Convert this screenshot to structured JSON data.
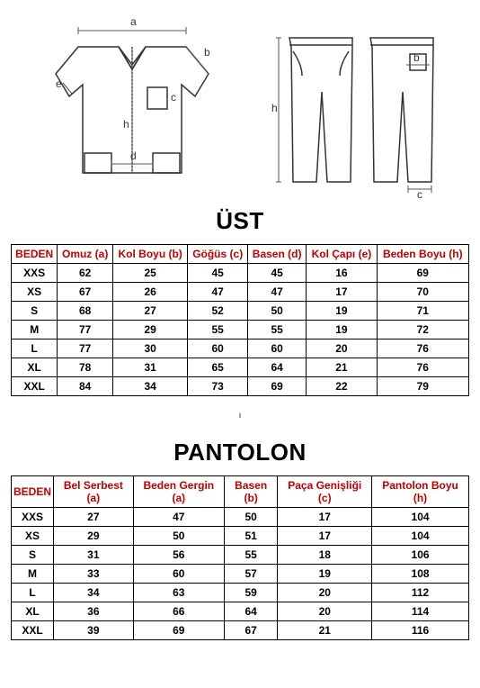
{
  "diagram": {
    "labels": {
      "a": "a",
      "b": "b",
      "c": "c",
      "d": "d",
      "e": "e",
      "h": "h"
    },
    "stroke": "#333333",
    "dimStroke": "#555555",
    "dimColor": "#333333"
  },
  "ust": {
    "title": "ÜST",
    "headers": [
      "BEDEN",
      "Omuz (a)",
      "Kol Boyu (b)",
      "Göğüs (c)",
      "Basen (d)",
      "Kol Çapı (e)",
      "Beden Boyu (h)"
    ],
    "headerColor": "#c00000",
    "rows": [
      [
        "XXS",
        "62",
        "25",
        "45",
        "45",
        "16",
        "69"
      ],
      [
        "XS",
        "67",
        "26",
        "47",
        "47",
        "17",
        "70"
      ],
      [
        "S",
        "68",
        "27",
        "52",
        "50",
        "19",
        "71"
      ],
      [
        "M",
        "77",
        "29",
        "55",
        "55",
        "19",
        "72"
      ],
      [
        "L",
        "77",
        "30",
        "60",
        "60",
        "20",
        "76"
      ],
      [
        "XL",
        "78",
        "31",
        "65",
        "64",
        "21",
        "76"
      ],
      [
        "XXL",
        "84",
        "34",
        "73",
        "69",
        "22",
        "79"
      ]
    ]
  },
  "midMark": "ı",
  "pantolon": {
    "title": "PANTOLON",
    "headers": [
      "BEDEN",
      "Bel Serbest (a)",
      "Beden Gergin (a)",
      "Basen (b)",
      "Paça Genişliği (c)",
      "Pantolon Boyu (h)"
    ],
    "headerColor": "#c00000",
    "rows": [
      [
        "XXS",
        "27",
        "47",
        "50",
        "17",
        "104"
      ],
      [
        "XS",
        "29",
        "50",
        "51",
        "17",
        "104"
      ],
      [
        "S",
        "31",
        "56",
        "55",
        "18",
        "106"
      ],
      [
        "M",
        "33",
        "60",
        "57",
        "19",
        "108"
      ],
      [
        "L",
        "34",
        "63",
        "59",
        "20",
        "112"
      ],
      [
        "XL",
        "36",
        "66",
        "64",
        "20",
        "114"
      ],
      [
        "XXL",
        "39",
        "69",
        "67",
        "21",
        "116"
      ]
    ]
  }
}
